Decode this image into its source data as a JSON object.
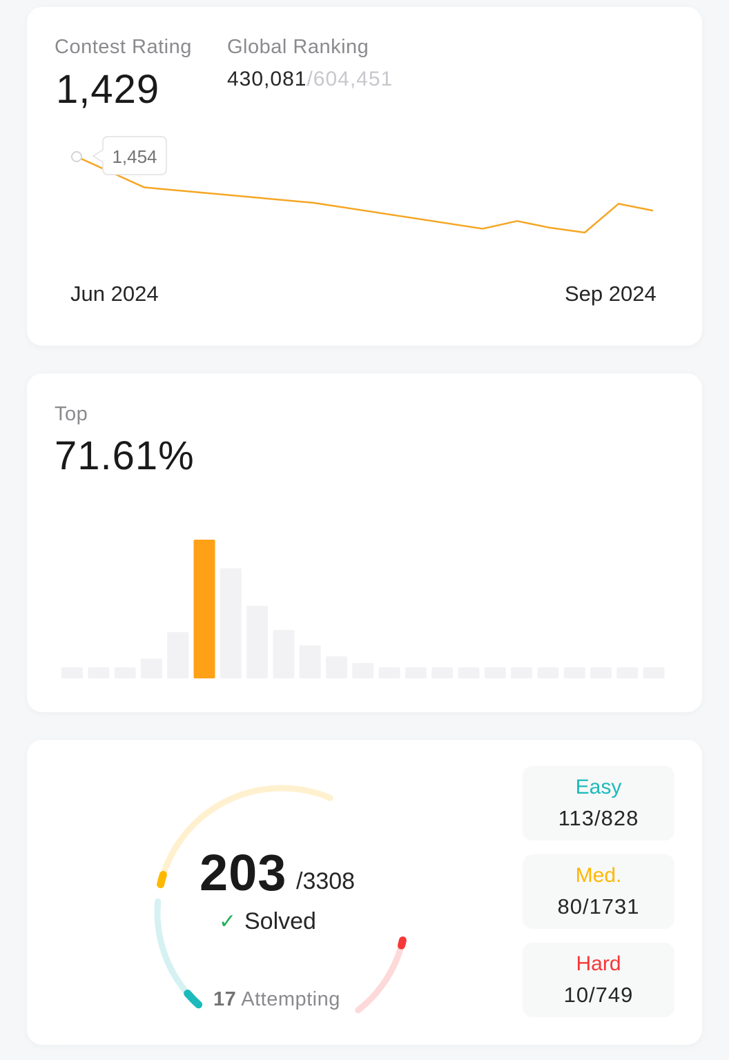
{
  "contest": {
    "rating_label": "Contest Rating",
    "rating_value": "1,429",
    "ranking_label": "Global Ranking",
    "ranking_value": "430,081",
    "ranking_total": "/604,451",
    "tooltip_value": "1,454",
    "x_start_label": "Jun 2024",
    "x_end_label": "Sep 2024",
    "line_color": "#f5a623"
  },
  "top": {
    "label": "Top",
    "value": "71.61%",
    "highlight_color": "#ffa116",
    "bar_color": "#f2f2f4"
  },
  "chart_data": [
    {
      "type": "line",
      "title": "",
      "xlabel": "",
      "ylabel": "",
      "x_ticks": [
        "Jun 2024",
        "Sep 2024"
      ],
      "values": [
        1454,
        1422,
        1406,
        1379,
        1387,
        1380,
        1375,
        1405,
        1398
      ],
      "tooltip": "1,454",
      "grid": false
    },
    {
      "type": "bar",
      "title": "",
      "values": [
        5,
        5,
        5,
        9,
        21,
        63,
        50,
        33,
        22,
        15,
        10,
        7,
        5,
        5,
        5,
        5,
        5,
        5,
        5,
        5,
        5,
        5,
        5
      ],
      "highlight_index": 5,
      "grid": false
    }
  ],
  "problems": {
    "solved": "203",
    "total": "/3308",
    "solved_label": "Solved",
    "check_icon": "✓",
    "attempting_count": "17",
    "attempting_label": "Attempting",
    "difficulties": [
      {
        "name": "Easy",
        "count": "113/828",
        "color": "#1cbaba",
        "track": "#d6f1f1",
        "solved": 113,
        "total": 828
      },
      {
        "name": "Med.",
        "count": "80/1731",
        "color": "#ffb800",
        "track": "#fff1cf",
        "solved": 80,
        "total": 1731
      },
      {
        "name": "Hard",
        "count": "10/749",
        "color": "#f63737",
        "track": "#fdd9d9",
        "solved": 10,
        "total": 749
      }
    ]
  }
}
